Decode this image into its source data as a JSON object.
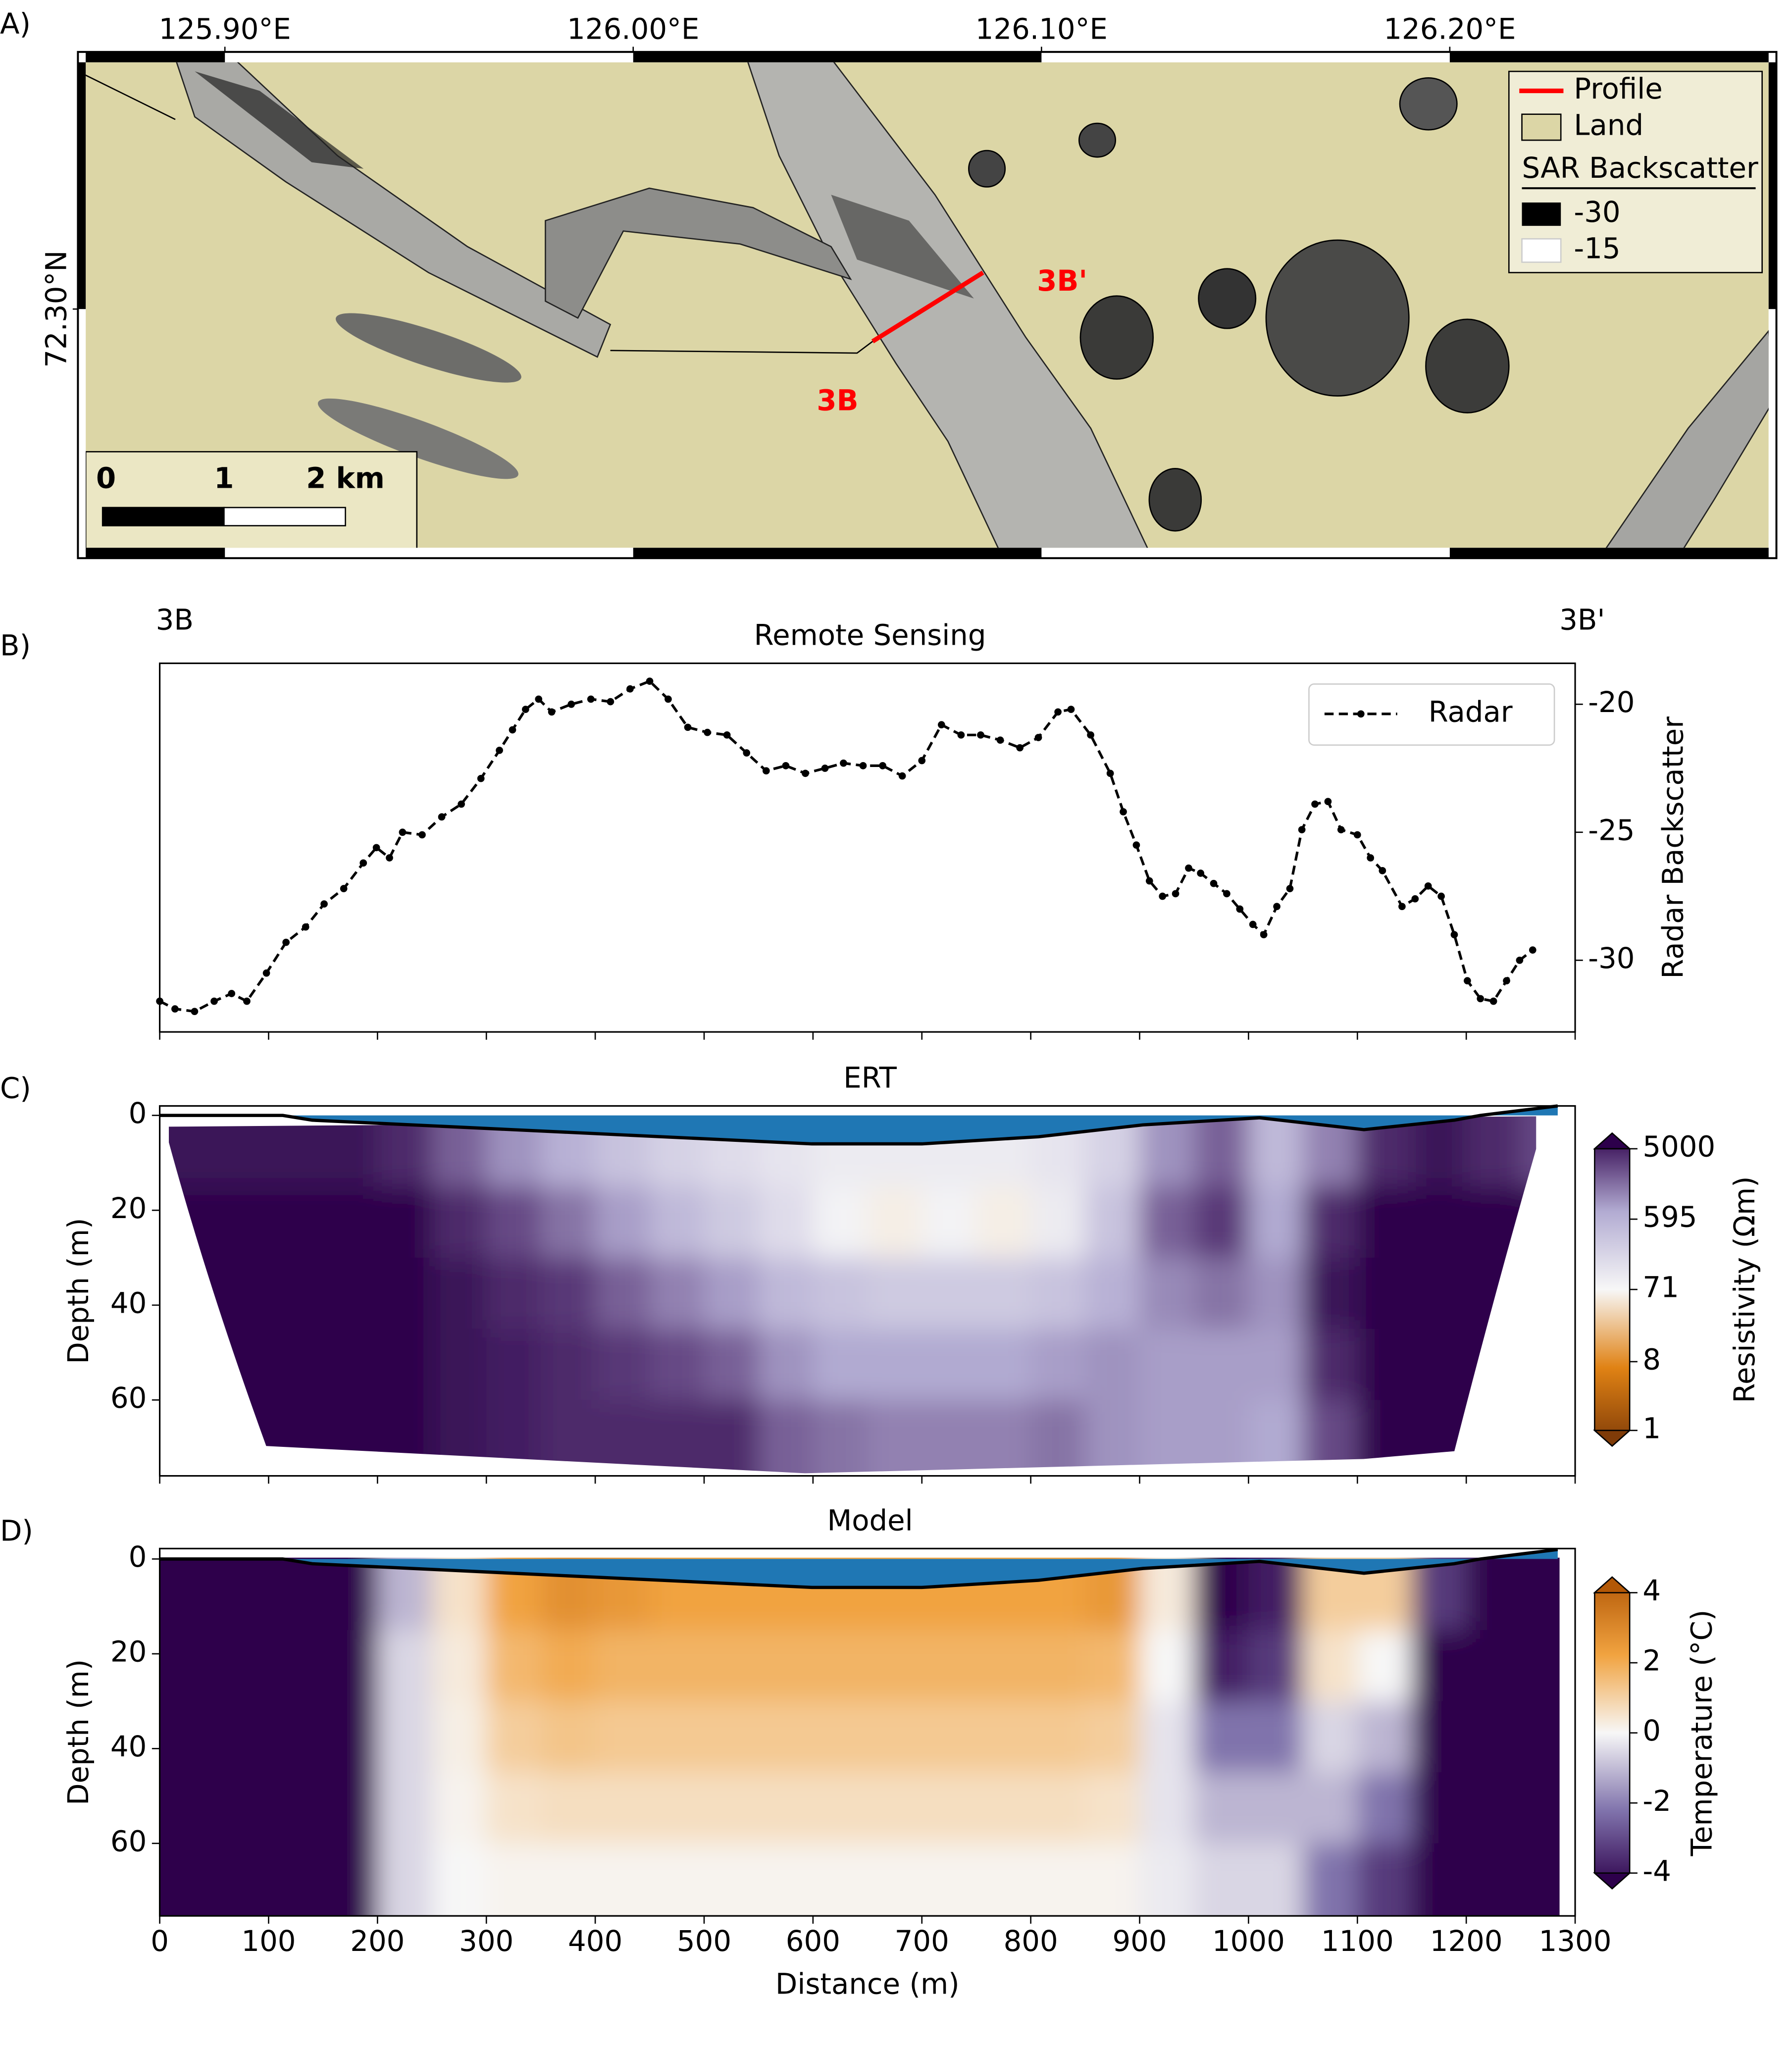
{
  "chart_data": [
    {
      "type": "map",
      "label": "A)",
      "xlim": [
        125.864,
        126.28
      ],
      "xticks": [
        {
          "value": 125.9,
          "label": "125.90°E"
        },
        {
          "value": 126.0,
          "label": "126.00°E"
        },
        {
          "value": 126.1,
          "label": "126.10°E"
        },
        {
          "value": 126.2,
          "label": "126.20°E"
        }
      ],
      "ylim": [
        72.2814,
        72.3192
      ],
      "yticks": [
        {
          "value": 72.3,
          "label": "72.30°N"
        }
      ],
      "profile_labels": [
        "3B",
        "3B'"
      ],
      "legend": {
        "profile": "Profile",
        "land": "Land",
        "title": "SAR Backscatter",
        "values": [
          -30,
          -15
        ]
      },
      "scale_lim": [
        0,
        2
      ],
      "scale_ticks": [
        0,
        1,
        {
          "value": 2,
          "label": "2 km"
        }
      ]
    },
    {
      "type": "line",
      "label": "B)",
      "title": "Remote Sensing",
      "endpoints": [
        "3B",
        "3B'"
      ],
      "ylabel": "Radar Backscatter",
      "xlim": [
        0,
        1300
      ],
      "xticks": [
        0,
        100,
        200,
        300,
        400,
        500,
        600,
        700,
        800,
        900,
        1000,
        1100,
        1200,
        1300
      ],
      "xtick_labels": false,
      "ylim": [
        -32.8,
        -18.4
      ],
      "yticks": [
        -30,
        -25,
        -20
      ],
      "y_axis_side": "right",
      "legend": "upper right",
      "x": [
        0,
        14,
        32,
        50,
        66,
        80,
        98,
        116,
        134,
        151,
        169,
        187,
        199,
        211,
        223,
        241,
        259,
        277,
        295,
        312,
        324,
        336,
        348,
        360,
        378,
        396,
        414,
        432,
        450,
        467,
        485,
        503,
        521,
        539,
        557,
        575,
        593,
        611,
        628,
        646,
        664,
        682,
        700,
        718,
        736,
        754,
        772,
        790,
        807,
        825,
        837,
        855,
        873,
        885,
        897,
        909,
        921,
        933,
        945,
        956,
        968,
        980,
        992,
        1004,
        1014,
        1026,
        1038,
        1049,
        1061,
        1073,
        1085,
        1100,
        1112,
        1123,
        1141,
        1153,
        1165,
        1177,
        1189,
        1201,
        1213,
        1225,
        1237,
        1249,
        1261
      ],
      "series": [
        {
          "name": "Radar",
          "color": "#000000",
          "values": [
            -31.6,
            -31.9,
            -32.0,
            -31.6,
            -31.3,
            -31.6,
            -30.5,
            -29.3,
            -28.7,
            -27.8,
            -27.2,
            -26.2,
            -25.6,
            -26.0,
            -25.0,
            -25.1,
            -24.4,
            -23.9,
            -22.9,
            -21.8,
            -21.0,
            -20.2,
            -19.8,
            -20.3,
            -20.0,
            -19.8,
            -19.9,
            -19.4,
            -19.1,
            -19.8,
            -20.9,
            -21.1,
            -21.2,
            -21.9,
            -22.6,
            -22.4,
            -22.7,
            -22.5,
            -22.3,
            -22.4,
            -22.4,
            -22.8,
            -22.2,
            -20.8,
            -21.2,
            -21.2,
            -21.4,
            -21.7,
            -21.3,
            -20.3,
            -20.2,
            -21.2,
            -22.7,
            -24.2,
            -25.5,
            -26.9,
            -27.5,
            -27.4,
            -26.4,
            -26.6,
            -27.0,
            -27.4,
            -28.0,
            -28.6,
            -29.0,
            -27.9,
            -27.2,
            -24.9,
            -23.9,
            -23.8,
            -24.9,
            -25.1,
            -26.0,
            -26.5,
            -27.9,
            -27.6,
            -27.1,
            -27.5,
            -29.0,
            -30.8,
            -31.5,
            -31.6,
            -30.8,
            -30.0,
            -29.6
          ]
        }
      ]
    },
    {
      "type": "heatmap",
      "label": "C)",
      "title": "ERT",
      "ylabel": "Depth (m)",
      "xlim": [
        0,
        1300
      ],
      "xticks": [
        0,
        100,
        200,
        300,
        400,
        500,
        600,
        700,
        800,
        900,
        1000,
        1100,
        1200,
        1300
      ],
      "xtick_labels": false,
      "ylim": [
        76,
        -2
      ],
      "yticks": [
        0,
        20,
        40,
        60
      ],
      "clip": "ert",
      "x_edges": [
        0,
        50,
        100,
        150,
        200,
        250,
        300,
        350,
        400,
        450,
        500,
        550,
        600,
        650,
        700,
        750,
        800,
        850,
        900,
        950,
        1000,
        1050,
        1100,
        1150,
        1200,
        1250,
        1300
      ],
      "depth_edges": [
        0,
        15,
        30,
        45,
        60,
        76
      ],
      "z": [
        [
          4000,
          4000,
          4000,
          4000,
          3000,
          1500,
          800,
          500,
          300,
          200,
          150,
          120,
          100,
          100,
          100,
          100,
          120,
          200,
          800,
          1500,
          400,
          1000,
          3000,
          4000,
          3000,
          2000
        ],
        [
          5000,
          5000,
          5000,
          5000,
          5000,
          3000,
          2000,
          1200,
          700,
          400,
          250,
          150,
          80,
          60,
          80,
          60,
          100,
          300,
          1500,
          2500,
          600,
          3000,
          5000,
          5000,
          5000,
          5000
        ],
        [
          5000,
          5000,
          5000,
          5000,
          5000,
          4000,
          3000,
          2500,
          1500,
          1000,
          700,
          400,
          300,
          250,
          250,
          250,
          300,
          500,
          900,
          1200,
          800,
          4000,
          5000,
          5000,
          5000,
          5000
        ],
        [
          5000,
          5000,
          5000,
          5000,
          5000,
          4000,
          3500,
          3000,
          2500,
          2000,
          1500,
          800,
          600,
          600,
          600,
          600,
          700,
          800,
          700,
          700,
          700,
          3000,
          5000,
          5000,
          5000,
          5000
        ],
        [
          5000,
          5000,
          5000,
          5000,
          5000,
          4000,
          3500,
          3000,
          3000,
          3000,
          3000,
          1500,
          1200,
          1000,
          1000,
          1000,
          1200,
          800,
          700,
          700,
          600,
          2000,
          5000,
          5000,
          5000,
          5000
        ]
      ],
      "bathymetry": {
        "x": [
          0,
          113,
          140,
          599,
          700,
          807,
          903,
          1010,
          1106,
          1189,
          1213,
          1284
        ],
        "values": [
          0,
          0,
          1,
          6,
          6,
          4.5,
          2,
          0.5,
          3,
          1,
          0,
          -2
        ],
        "color": "#1f77b4"
      },
      "colorbar": {
        "label": "Resistivity (Ωm)",
        "scale": "log",
        "lim": [
          1,
          5000
        ],
        "ticks": [
          5000,
          595,
          71,
          8,
          1
        ],
        "colors": [
          "#7f3b08",
          "#e08214",
          "#f7f7f7",
          "#b2abd2",
          "#2d004b"
        ]
      }
    },
    {
      "type": "heatmap",
      "label": "D)",
      "title": "Model",
      "ylabel": "Depth (m)",
      "xlabel": "Distance (m)",
      "xlim": [
        0,
        1300
      ],
      "xticks": [
        0,
        100,
        200,
        300,
        400,
        500,
        600,
        700,
        800,
        900,
        1000,
        1100,
        1200,
        1300
      ],
      "xtick_labels": true,
      "ylim": [
        75.3,
        -2.2
      ],
      "yticks": [
        0,
        20,
        40,
        60
      ],
      "clip": "rect",
      "x_edges": [
        0,
        50,
        100,
        150,
        200,
        250,
        300,
        350,
        400,
        450,
        500,
        550,
        600,
        650,
        700,
        750,
        800,
        850,
        900,
        950,
        1000,
        1050,
        1100,
        1150,
        1200,
        1250,
        1285
      ],
      "depth_edges": [
        0,
        15,
        30,
        45,
        60,
        75.3
      ],
      "z": [
        [
          -4,
          -4,
          -4,
          -4,
          -1,
          0.5,
          2,
          2.5,
          2.3,
          2,
          2,
          2,
          2,
          2,
          2,
          2,
          2,
          2.3,
          0.3,
          -4,
          -3.5,
          1,
          1,
          -3,
          -4,
          -4
        ],
        [
          -4,
          -4,
          -4,
          -4,
          -0.5,
          0.3,
          1.5,
          1.8,
          1.6,
          1.6,
          1.6,
          1.6,
          1.6,
          1.6,
          1.6,
          1.6,
          1.6,
          1.5,
          0,
          -3.5,
          -3,
          0.5,
          0,
          -4,
          -4,
          -4
        ],
        [
          -4,
          -4,
          -4,
          -4,
          -0.5,
          0.2,
          1,
          1.2,
          1.1,
          1.1,
          1.1,
          1.1,
          1.1,
          1.1,
          1.1,
          1.1,
          1.1,
          1,
          -0.3,
          -2,
          -2,
          -0.5,
          -1,
          -4,
          -4,
          -4
        ],
        [
          -4,
          -4,
          -4,
          -4,
          -0.5,
          0.1,
          0.5,
          0.6,
          0.6,
          0.6,
          0.6,
          0.6,
          0.6,
          0.6,
          0.6,
          0.6,
          0.6,
          0.5,
          -0.3,
          -1,
          -1,
          -1,
          -2,
          -4,
          -4,
          -4
        ],
        [
          -4,
          -4,
          -4,
          -4,
          -0.5,
          0,
          0.1,
          0.1,
          0.1,
          0.1,
          0.1,
          0.1,
          0.1,
          0.1,
          0.1,
          0.1,
          0.1,
          0.1,
          -0.2,
          -0.5,
          -0.5,
          -2,
          -3,
          -4,
          -4,
          -4
        ]
      ],
      "bathymetry": {
        "x": [
          0,
          113,
          140,
          599,
          700,
          807,
          903,
          1010,
          1106,
          1189,
          1213,
          1284
        ],
        "values": [
          0,
          0,
          1,
          6,
          6,
          4.5,
          2,
          0.5,
          3,
          1,
          0,
          -2
        ],
        "color": "#1f77b4"
      },
      "colorbar": {
        "label": "Temperature (°C)",
        "scale": "linear",
        "lim": [
          -4,
          4
        ],
        "ticks": [
          -4,
          -2,
          0,
          2,
          4
        ],
        "colors": [
          "#2d004b",
          "#8073ac",
          "#f7f7f7",
          "#f1a340",
          "#b35806"
        ]
      }
    }
  ]
}
